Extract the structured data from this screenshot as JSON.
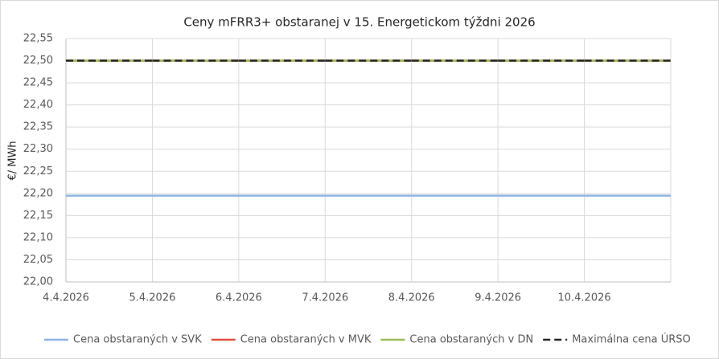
{
  "chart_data": {
    "type": "line",
    "title": "Ceny mFRR3+ obstaranej v 15. Energetickom týždni 2026",
    "y_label": "€/ MWh",
    "categories": [
      "4.4.2026",
      "5.4.2026",
      "6.4.2026",
      "7.4.2026",
      "8.4.2026",
      "9.4.2026",
      "10.4.2026"
    ],
    "series": [
      {
        "name": "Cena obstaraných v SVK",
        "color": "#8eb4e3",
        "style": "solid",
        "values": [
          22.195,
          22.195,
          22.195,
          22.195,
          22.195,
          22.195,
          22.195
        ]
      },
      {
        "name": "Cena obstaraných v MVK",
        "color": "#e0513d",
        "style": "solid",
        "values": [
          22.5,
          22.5,
          22.5,
          22.5,
          22.5,
          22.5,
          22.5
        ]
      },
      {
        "name": "Cena obstaraných v DN",
        "color": "#9bbb59",
        "style": "solid",
        "values": [
          22.5,
          22.5,
          22.5,
          22.5,
          22.5,
          22.5,
          22.5
        ]
      },
      {
        "name": "Maximálna cena ÚRSO",
        "color": "#262626",
        "style": "dashed",
        "values": [
          22.5,
          22.5,
          22.5,
          22.5,
          22.5,
          22.5,
          22.5
        ]
      }
    ],
    "ylim": [
      22.0,
      22.55
    ],
    "yticks": [
      {
        "value": 22.0,
        "label": "22,00"
      },
      {
        "value": 22.05,
        "label": "22,05"
      },
      {
        "value": 22.1,
        "label": "22,10"
      },
      {
        "value": 22.15,
        "label": "22,15"
      },
      {
        "value": 22.2,
        "label": "22,20"
      },
      {
        "value": 22.25,
        "label": "22,25"
      },
      {
        "value": 22.3,
        "label": "22,30"
      },
      {
        "value": 22.35,
        "label": "22,35"
      },
      {
        "value": 22.4,
        "label": "22,40"
      },
      {
        "value": 22.45,
        "label": "22,45"
      },
      {
        "value": 22.5,
        "label": "22,50"
      },
      {
        "value": 22.55,
        "label": "22,55"
      }
    ],
    "grid": true,
    "legend": "bottom"
  }
}
